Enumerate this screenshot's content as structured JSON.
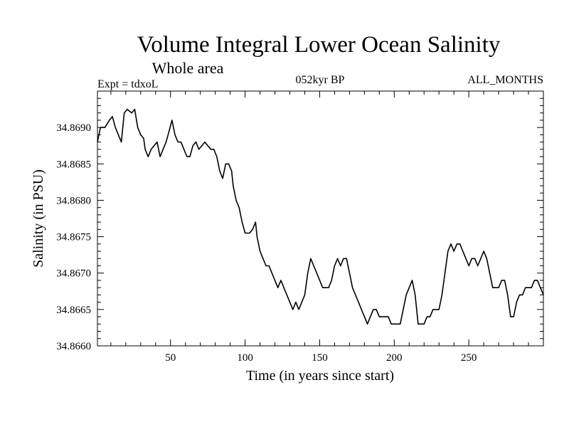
{
  "chart_data": {
    "type": "line",
    "title": "Volume Integral Lower Ocean Salinity",
    "subtitle": "Whole area",
    "annotations": {
      "expt": "Expt = tdxoL",
      "period": "052kyr BP",
      "months": "ALL_MONTHS"
    },
    "xlabel": "Time (in years since start)",
    "ylabel": "Salinity (in PSU)",
    "xlim": [
      1,
      300
    ],
    "ylim": [
      34.866,
      34.8695
    ],
    "xticks": [
      50,
      100,
      150,
      200,
      250
    ],
    "yticks": [
      34.866,
      34.8665,
      34.867,
      34.8675,
      34.868,
      34.8685,
      34.869
    ],
    "ytick_labels": [
      "34.8660",
      "34.8665",
      "34.8670",
      "34.8675",
      "34.8680",
      "34.8685",
      "34.8690"
    ],
    "grid": false,
    "series": [
      {
        "color": "#000000",
        "points": [
          [
            1,
            34.8688
          ],
          [
            3,
            34.869
          ],
          [
            6,
            34.869
          ],
          [
            9,
            34.8691
          ],
          [
            11,
            34.86915
          ],
          [
            13,
            34.869
          ],
          [
            15,
            34.8689
          ],
          [
            17,
            34.8688
          ],
          [
            19,
            34.8692
          ],
          [
            21,
            34.86925
          ],
          [
            24,
            34.8692
          ],
          [
            26,
            34.86925
          ],
          [
            28,
            34.869
          ],
          [
            30,
            34.8689
          ],
          [
            32,
            34.86885
          ],
          [
            33,
            34.8687
          ],
          [
            35,
            34.8686
          ],
          [
            37,
            34.8687
          ],
          [
            39,
            34.86875
          ],
          [
            41,
            34.8688
          ],
          [
            43,
            34.8686
          ],
          [
            45,
            34.8687
          ],
          [
            47,
            34.8688
          ],
          [
            49,
            34.86895
          ],
          [
            51,
            34.8691
          ],
          [
            53,
            34.8689
          ],
          [
            55,
            34.8688
          ],
          [
            57,
            34.8688
          ],
          [
            59,
            34.8687
          ],
          [
            61,
            34.8686
          ],
          [
            63,
            34.8686
          ],
          [
            65,
            34.86875
          ],
          [
            67,
            34.8688
          ],
          [
            69,
            34.8687
          ],
          [
            71,
            34.86875
          ],
          [
            73,
            34.8688
          ],
          [
            75,
            34.86875
          ],
          [
            77,
            34.8687
          ],
          [
            79,
            34.8687
          ],
          [
            81,
            34.8686
          ],
          [
            83,
            34.8684
          ],
          [
            85,
            34.8683
          ],
          [
            87,
            34.8685
          ],
          [
            89,
            34.8685
          ],
          [
            91,
            34.8684
          ],
          [
            92,
            34.8682
          ],
          [
            94,
            34.868
          ],
          [
            96,
            34.8679
          ],
          [
            98,
            34.8677
          ],
          [
            100,
            34.86755
          ],
          [
            103,
            34.86755
          ],
          [
            105,
            34.8676
          ],
          [
            107,
            34.8677
          ],
          [
            108,
            34.8675
          ],
          [
            110,
            34.8673
          ],
          [
            112,
            34.8672
          ],
          [
            114,
            34.8671
          ],
          [
            116,
            34.8671
          ],
          [
            118,
            34.867
          ],
          [
            120,
            34.8669
          ],
          [
            122,
            34.8668
          ],
          [
            124,
            34.8669
          ],
          [
            126,
            34.8668
          ],
          [
            128,
            34.8667
          ],
          [
            130,
            34.8666
          ],
          [
            132,
            34.8665
          ],
          [
            134,
            34.8666
          ],
          [
            136,
            34.8665
          ],
          [
            138,
            34.8666
          ],
          [
            140,
            34.8667
          ],
          [
            142,
            34.867
          ],
          [
            144,
            34.8672
          ],
          [
            146,
            34.8671
          ],
          [
            148,
            34.867
          ],
          [
            150,
            34.8669
          ],
          [
            152,
            34.8668
          ],
          [
            154,
            34.8668
          ],
          [
            156,
            34.8668
          ],
          [
            158,
            34.8669
          ],
          [
            160,
            34.8671
          ],
          [
            162,
            34.8672
          ],
          [
            164,
            34.8671
          ],
          [
            166,
            34.8672
          ],
          [
            168,
            34.8672
          ],
          [
            170,
            34.867
          ],
          [
            172,
            34.8668
          ],
          [
            174,
            34.8667
          ],
          [
            176,
            34.8666
          ],
          [
            178,
            34.8665
          ],
          [
            180,
            34.8664
          ],
          [
            182,
            34.8663
          ],
          [
            184,
            34.8664
          ],
          [
            186,
            34.8665
          ],
          [
            188,
            34.8665
          ],
          [
            190,
            34.8664
          ],
          [
            192,
            34.8664
          ],
          [
            194,
            34.8664
          ],
          [
            196,
            34.8664
          ],
          [
            198,
            34.8663
          ],
          [
            200,
            34.8663
          ],
          [
            202,
            34.8663
          ],
          [
            204,
            34.8663
          ],
          [
            206,
            34.8665
          ],
          [
            208,
            34.8667
          ],
          [
            210,
            34.8668
          ],
          [
            212,
            34.8669
          ],
          [
            214,
            34.8667
          ],
          [
            216,
            34.8663
          ],
          [
            218,
            34.8663
          ],
          [
            220,
            34.8663
          ],
          [
            222,
            34.8664
          ],
          [
            224,
            34.8664
          ],
          [
            226,
            34.8665
          ],
          [
            228,
            34.8665
          ],
          [
            230,
            34.8665
          ],
          [
            232,
            34.8667
          ],
          [
            234,
            34.867
          ],
          [
            236,
            34.8673
          ],
          [
            238,
            34.8674
          ],
          [
            240,
            34.8673
          ],
          [
            242,
            34.8674
          ],
          [
            244,
            34.8674
          ],
          [
            246,
            34.8673
          ],
          [
            248,
            34.8672
          ],
          [
            250,
            34.8671
          ],
          [
            252,
            34.8672
          ],
          [
            254,
            34.8672
          ],
          [
            256,
            34.8671
          ],
          [
            258,
            34.8672
          ],
          [
            260,
            34.8673
          ],
          [
            262,
            34.8672
          ],
          [
            264,
            34.867
          ],
          [
            266,
            34.8668
          ],
          [
            268,
            34.8668
          ],
          [
            270,
            34.8668
          ],
          [
            272,
            34.8669
          ],
          [
            274,
            34.8669
          ],
          [
            276,
            34.8667
          ],
          [
            278,
            34.8664
          ],
          [
            280,
            34.8664
          ],
          [
            282,
            34.8666
          ],
          [
            284,
            34.8667
          ],
          [
            286,
            34.8667
          ],
          [
            288,
            34.8668
          ],
          [
            290,
            34.8668
          ],
          [
            292,
            34.8668
          ],
          [
            294,
            34.8669
          ],
          [
            296,
            34.8669
          ],
          [
            298,
            34.8668
          ],
          [
            300,
            34.8667
          ]
        ]
      }
    ]
  }
}
